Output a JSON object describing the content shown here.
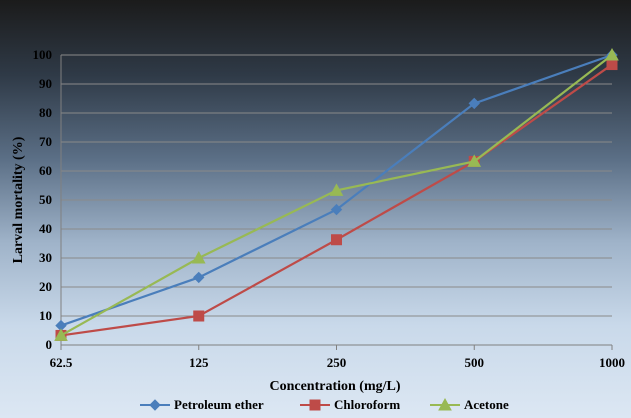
{
  "chart_data": {
    "type": "line",
    "title": "",
    "xlabel": "Concentration (mg/L)",
    "ylabel": "Larval mortality (%)",
    "categories": [
      "62.5",
      "125",
      "250",
      "500",
      "1000"
    ],
    "ylim": [
      0,
      100
    ],
    "yticks": [
      0,
      10,
      20,
      30,
      40,
      50,
      60,
      70,
      80,
      90,
      100
    ],
    "grid": true,
    "legend_position": "bottom",
    "series": [
      {
        "name": "Petroleum ether",
        "values": [
          6.7,
          23.3,
          46.7,
          83.3,
          100
        ],
        "color": "#4a7ebb",
        "marker": "diamond"
      },
      {
        "name": "Chloroform",
        "values": [
          3.3,
          10,
          36.3,
          63.3,
          96.7
        ],
        "color": "#be4b48",
        "marker": "square"
      },
      {
        "name": "Acetone",
        "values": [
          3.3,
          30,
          53.3,
          63.3,
          100
        ],
        "color": "#98b954",
        "marker": "triangle"
      }
    ]
  }
}
